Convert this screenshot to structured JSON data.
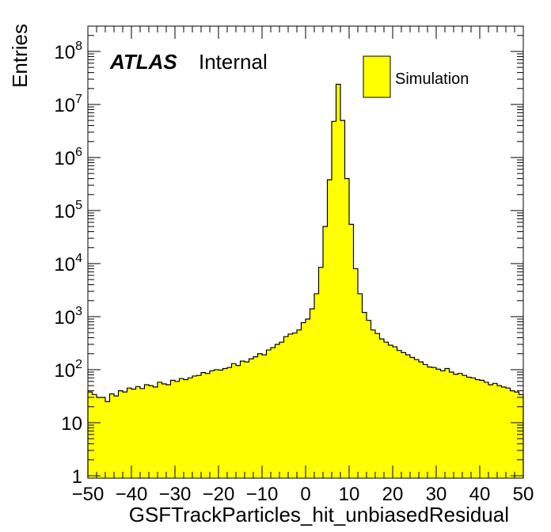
{
  "chart_data": {
    "type": "histogram",
    "xlabel": "GSFTrackParticles_hit_unbiasedResidual",
    "ylabel": "Entries",
    "xlim": [
      -50,
      50
    ],
    "ylim": [
      0.9,
      300000000
    ],
    "yscale": "log",
    "bin_width": 1,
    "x_start": -50,
    "x_ticks": [
      -50,
      -40,
      -30,
      -20,
      -10,
      0,
      10,
      20,
      30,
      40,
      50
    ],
    "x_tick_labels": [
      "−50",
      "−40",
      "−30",
      "−20",
      "−10",
      "0",
      "10",
      "20",
      "30",
      "40",
      "50"
    ],
    "y_ticks": [
      {
        "value": 1,
        "base": "1",
        "exp": ""
      },
      {
        "value": 10,
        "base": "10",
        "exp": ""
      },
      {
        "value": 100,
        "base": "10",
        "exp": "2"
      },
      {
        "value": 1000,
        "base": "10",
        "exp": "3"
      },
      {
        "value": 10000,
        "base": "10",
        "exp": "4"
      },
      {
        "value": 100000,
        "base": "10",
        "exp": "5"
      },
      {
        "value": 1000000,
        "base": "10",
        "exp": "6"
      },
      {
        "value": 10000000,
        "base": "10",
        "exp": "7"
      },
      {
        "value": 100000000,
        "base": "10",
        "exp": "8"
      }
    ],
    "values": [
      38,
      34,
      30,
      30,
      25,
      35,
      32,
      40,
      38,
      45,
      43,
      48,
      44,
      52,
      50,
      47,
      58,
      54,
      52,
      63,
      60,
      68,
      65,
      70,
      76,
      78,
      88,
      85,
      95,
      100,
      98,
      105,
      110,
      130,
      120,
      145,
      140,
      160,
      175,
      200,
      190,
      235,
      260,
      300,
      330,
      420,
      470,
      490,
      560,
      770,
      900,
      1400,
      2700,
      8500,
      50000,
      380000,
      4800000,
      24000000,
      5000000,
      400000,
      55000,
      8000,
      2700,
      1200,
      850,
      560,
      480,
      380,
      330,
      290,
      270,
      230,
      210,
      190,
      170,
      155,
      140,
      125,
      112,
      110,
      102,
      95,
      105,
      90,
      82,
      85,
      78,
      72,
      70,
      65,
      63,
      58,
      52,
      55,
      50,
      47,
      45,
      40,
      38,
      34
    ],
    "fill_color": "#ffff00",
    "line_color": "#000000",
    "legend": {
      "position": "top-right",
      "entries": [
        {
          "name": "Simulation",
          "color": "#ffff00"
        }
      ]
    },
    "annotations": {
      "atlas": "ATLAS",
      "label": "Internal"
    }
  }
}
